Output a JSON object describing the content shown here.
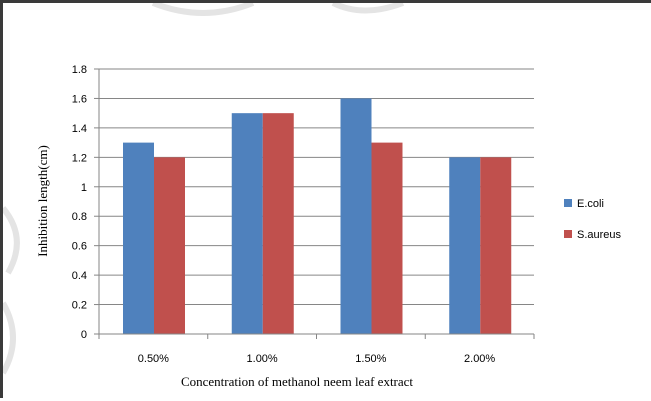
{
  "chart_data": {
    "type": "bar",
    "categories": [
      "0.50%",
      "1.00%",
      "1.50%",
      "2.00%"
    ],
    "series": [
      {
        "name": "E.coli",
        "values": [
          1.3,
          1.5,
          1.6,
          1.2
        ],
        "color": "#4F81BD"
      },
      {
        "name": "S.aureus",
        "values": [
          1.2,
          1.5,
          1.3,
          1.2
        ],
        "color": "#C0504D"
      }
    ],
    "xlabel": "Concentration of methanol neem leaf extract",
    "ylabel": "Inhibition length(cm)",
    "ylim": [
      0,
      1.8
    ],
    "yticks": [
      "0",
      "0.2",
      "0.4",
      "0.6",
      "0.8",
      "1",
      "1.2",
      "1.4",
      "1.6",
      "1.8"
    ],
    "grid": true,
    "legend_position": "right"
  }
}
